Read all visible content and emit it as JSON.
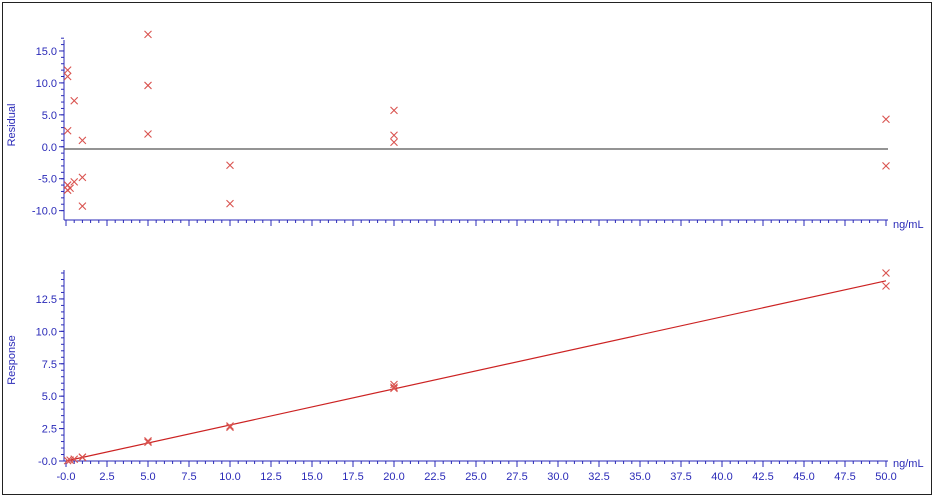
{
  "chart_data": [
    {
      "type": "scatter",
      "ylabel": "Residual",
      "x_unit_label": "ng/mL",
      "ylim": [
        -11,
        17.5
      ],
      "xlim": [
        0,
        50
      ],
      "y_ticks": [
        "-10.0",
        "-5.0",
        "0.0",
        "5.0",
        "10.0",
        "15.0"
      ],
      "zero_line": true,
      "grid": false,
      "marker_color": "#d9534f",
      "axis_color": "#2a2ab8",
      "series": [
        {
          "x": [
            0.1,
            0.1,
            0.1,
            0.1,
            0.1,
            0.25,
            0.5,
            0.5,
            1.0,
            1.0,
            1.0,
            5.0,
            5.0,
            5.0,
            10.0,
            10.0,
            20.0,
            20.0,
            20.0,
            50.0,
            50.0
          ],
          "y": [
            12.0,
            11.0,
            2.5,
            -6.0,
            -6.8,
            -6.5,
            7.2,
            -5.5,
            1.0,
            -4.8,
            -9.3,
            17.6,
            9.6,
            2.0,
            -2.9,
            -8.9,
            5.7,
            1.8,
            0.7,
            4.3,
            -3.0
          ]
        }
      ]
    },
    {
      "type": "scatter",
      "ylabel": "Response",
      "x_unit_label": "ng/mL",
      "ylim": [
        0,
        14.5
      ],
      "xlim": [
        0,
        50
      ],
      "y_ticks": [
        "-0.0",
        "2.5",
        "5.0",
        "7.5",
        "10.0",
        "12.5"
      ],
      "x_ticks": [
        "-0.0",
        "2.5",
        "5.0",
        "7.5",
        "10.0",
        "12.5",
        "15.0",
        "17.5",
        "20.0",
        "22.5",
        "25.0",
        "27.5",
        "30.0",
        "32.5",
        "35.0",
        "37.5",
        "40.0",
        "42.5",
        "45.0",
        "47.5",
        "50.0"
      ],
      "grid": false,
      "marker_color": "#d9534f",
      "axis_color": "#2a2ab8",
      "fit_line": {
        "x": [
          0,
          50
        ],
        "y": [
          0.0,
          13.9
        ],
        "color": "#cc2222"
      },
      "series": [
        {
          "x": [
            0.1,
            0.25,
            0.5,
            1.0,
            1.0,
            5.0,
            5.0,
            10.0,
            10.0,
            20.0,
            20.0,
            20.0,
            50.0,
            50.0
          ],
          "y": [
            0.03,
            0.07,
            0.14,
            0.28,
            0.3,
            1.45,
            1.55,
            2.6,
            2.7,
            5.6,
            5.7,
            5.9,
            14.5,
            13.5
          ]
        }
      ]
    }
  ]
}
